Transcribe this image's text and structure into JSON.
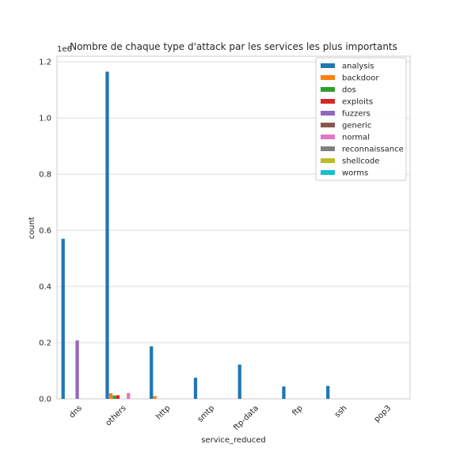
{
  "chart_data": {
    "type": "bar",
    "title": "Nombre de chaque type d'attack par les services les plus importants",
    "xlabel": "service_reduced",
    "ylabel": "count",
    "y_scale_label": "1e6",
    "ylim": [
      0,
      1.22
    ],
    "yticks": [
      "0.0",
      "0.2",
      "0.4",
      "0.6",
      "0.8",
      "1.0",
      "1.2"
    ],
    "grid": "horizontal",
    "legend_position": "top-right",
    "categories": [
      "dns",
      "others",
      "http",
      "smtp",
      "ftp-data",
      "ftp",
      "ssh",
      "pop3"
    ],
    "series": [
      {
        "name": "analysis",
        "color": "#1f77b4",
        "values": [
          0.57,
          1.165,
          0.187,
          0.075,
          0.122,
          0.044,
          0.046,
          0
        ]
      },
      {
        "name": "backdoor",
        "color": "#ff7f0e",
        "values": [
          0,
          0.02,
          0.01,
          0,
          0,
          0,
          0,
          0
        ]
      },
      {
        "name": "dos",
        "color": "#2ca02c",
        "values": [
          0,
          0.012,
          0,
          0,
          0,
          0,
          0,
          0
        ]
      },
      {
        "name": "exploits",
        "color": "#d62728",
        "values": [
          0,
          0.013,
          0,
          0,
          0,
          0,
          0,
          0
        ]
      },
      {
        "name": "fuzzers",
        "color": "#9467bd",
        "values": [
          0.208,
          0,
          0,
          0,
          0,
          0,
          0,
          0
        ]
      },
      {
        "name": "generic",
        "color": "#8c564b",
        "values": [
          0,
          0,
          0,
          0,
          0,
          0,
          0,
          0
        ]
      },
      {
        "name": "normal",
        "color": "#e377c2",
        "values": [
          0,
          0.021,
          0,
          0,
          0,
          0,
          0,
          0
        ]
      },
      {
        "name": "reconnaissance",
        "color": "#7f7f7f",
        "values": [
          0,
          0,
          0,
          0,
          0,
          0,
          0,
          0
        ]
      },
      {
        "name": "shellcode",
        "color": "#bcbd22",
        "values": [
          0,
          0,
          0,
          0,
          0,
          0,
          0,
          0
        ]
      },
      {
        "name": "worms",
        "color": "#17becf",
        "values": [
          0,
          0,
          0,
          0,
          0,
          0,
          0,
          0
        ]
      }
    ]
  }
}
